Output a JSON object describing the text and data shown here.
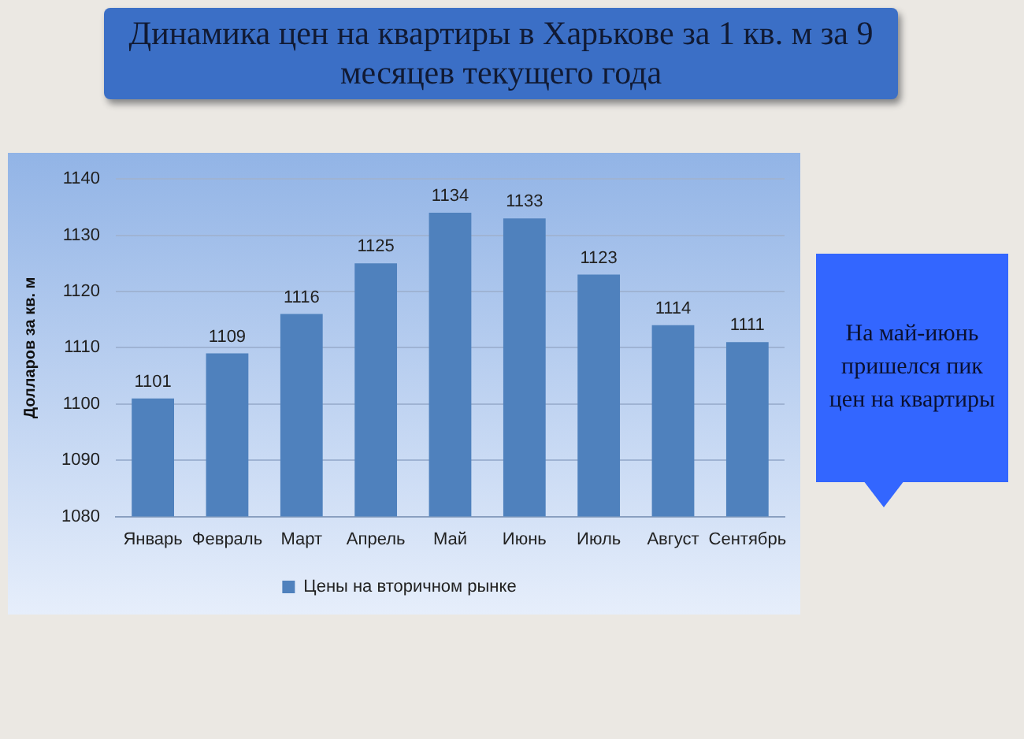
{
  "chart_data": {
    "type": "bar",
    "title": "Динамика цен на квартиры в Харькове за 1 кв. м за 9 месяцев текущего года",
    "ylabel": "Долларов за кв. м",
    "categories": [
      "Январь",
      "Февраль",
      "Март",
      "Апрель",
      "Май",
      "Июнь",
      "Июль",
      "Август",
      "Сентябрь"
    ],
    "series": [
      {
        "name": "Цены на вторичном рынке",
        "color": "#4f81bd",
        "values": [
          1101,
          1109,
          1116,
          1125,
          1134,
          1133,
          1123,
          1114,
          1111
        ]
      }
    ],
    "ylim": [
      1080,
      1140
    ],
    "yticks": [
      1080,
      1090,
      1100,
      1110,
      1120,
      1130,
      1140
    ],
    "grid": "y",
    "legend": "bottom",
    "data_labels": true,
    "annotations": [
      "На май-июнь пришелся пик цен на квартиры"
    ]
  }
}
